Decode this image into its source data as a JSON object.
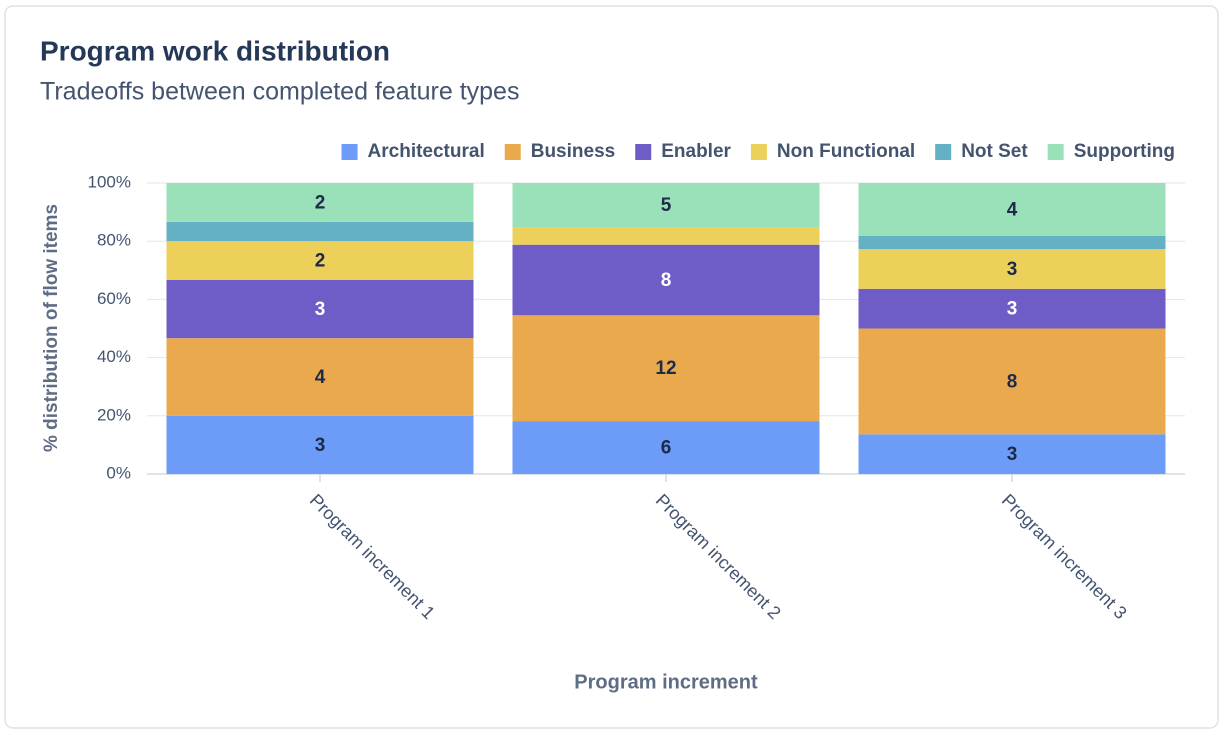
{
  "chart_data": {
    "type": "bar",
    "stacking": "percent",
    "title": "Program work distribution",
    "subtitle": "Tradeoffs between completed feature types",
    "x_label": "Program increment",
    "y_label": "% distribution of flow items",
    "categories": [
      "Program increment 1",
      "Program increment 2",
      "Program increment 3"
    ],
    "series": [
      {
        "name": "Architectural",
        "color": "#6c9cf8",
        "values": [
          3,
          6,
          3
        ]
      },
      {
        "name": "Business",
        "color": "#eba94e",
        "values": [
          4,
          12,
          8
        ]
      },
      {
        "name": "Enabler",
        "color": "#6e5dc6",
        "values": [
          3,
          8,
          3
        ]
      },
      {
        "name": "Non Functional",
        "color": "#ecd05a",
        "values": [
          2,
          2,
          3
        ]
      },
      {
        "name": "Not Set",
        "color": "#64b0c4",
        "values": [
          1,
          0,
          1
        ]
      },
      {
        "name": "Supporting",
        "color": "#9ae0b9",
        "values": [
          2,
          5,
          4
        ]
      }
    ],
    "ylim": [
      0,
      100
    ],
    "yticks": [
      {
        "value": 0,
        "label": "0%"
      },
      {
        "value": 20,
        "label": "20%"
      },
      {
        "value": 40,
        "label": "40%"
      },
      {
        "value": 60,
        "label": "60%"
      },
      {
        "value": 80,
        "label": "80%"
      },
      {
        "value": 100,
        "label": "100%"
      }
    ],
    "grid": true,
    "legend": "top-right"
  }
}
